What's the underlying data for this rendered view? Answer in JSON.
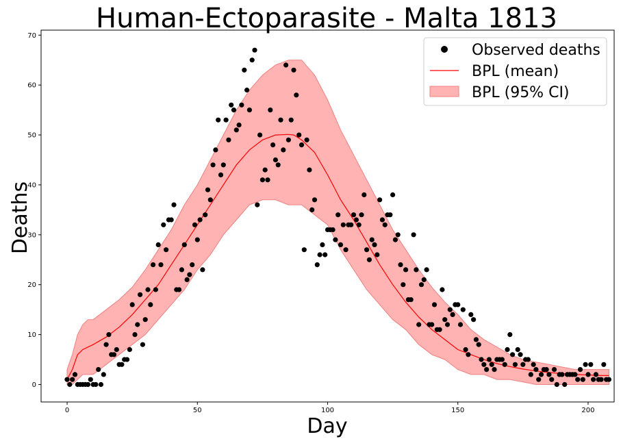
{
  "chart_data": {
    "type": "scatter",
    "title": "Human-Ectoparasite - Malta 1813",
    "xlabel": "Day",
    "ylabel": "Deaths",
    "xlim": [
      -10,
      210
    ],
    "ylim": [
      -3.5,
      71
    ],
    "xticks": [
      0,
      50,
      100,
      150,
      200
    ],
    "yticks": [
      0,
      10,
      20,
      30,
      40,
      50,
      60,
      70
    ],
    "grid": false,
    "legend": {
      "position": "top-right",
      "entries": [
        "Observed deaths",
        "BPL (mean)",
        "BPL (95% CI)"
      ]
    },
    "colors": {
      "observed": "#000000",
      "mean": "#ff0000",
      "ci_fill": "#ffb3b3",
      "ci_edge": "#f08080"
    },
    "observed": {
      "name": "Observed deaths",
      "x": [
        0,
        1,
        2,
        3,
        4,
        5,
        6,
        7,
        8,
        9,
        10,
        11,
        12,
        13,
        14,
        15,
        16,
        17,
        18,
        19,
        20,
        21,
        22,
        23,
        24,
        25,
        26,
        27,
        28,
        29,
        30,
        31,
        32,
        33,
        34,
        35,
        36,
        37,
        38,
        39,
        40,
        41,
        42,
        43,
        44,
        45,
        46,
        47,
        48,
        49,
        50,
        51,
        52,
        53,
        54,
        55,
        56,
        57,
        58,
        59,
        60,
        61,
        62,
        63,
        64,
        65,
        66,
        67,
        68,
        69,
        70,
        71,
        72,
        73,
        74,
        75,
        76,
        77,
        78,
        79,
        80,
        81,
        82,
        83,
        84,
        85,
        86,
        87,
        88,
        89,
        90,
        91,
        92,
        93,
        94,
        95,
        96,
        97,
        98,
        99,
        100,
        101,
        102,
        103,
        104,
        105,
        106,
        107,
        108,
        109,
        110,
        111,
        112,
        113,
        114,
        115,
        116,
        117,
        118,
        119,
        120,
        121,
        122,
        123,
        124,
        125,
        126,
        127,
        128,
        129,
        130,
        131,
        132,
        133,
        134,
        135,
        136,
        137,
        138,
        139,
        140,
        141,
        142,
        143,
        144,
        145,
        146,
        147,
        148,
        149,
        150,
        151,
        152,
        153,
        154,
        155,
        156,
        157,
        158,
        159,
        160,
        161,
        162,
        163,
        164,
        165,
        166,
        167,
        168,
        169,
        170,
        171,
        172,
        173,
        174,
        175,
        176,
        177,
        178,
        179,
        180,
        181,
        182,
        183,
        184,
        185,
        186,
        187,
        188,
        189,
        190,
        191,
        192,
        193,
        194,
        195,
        196,
        197,
        198,
        199,
        200,
        201,
        202,
        203,
        204,
        205,
        206,
        207,
        208
      ],
      "y": [
        1,
        0,
        1,
        2,
        0,
        0,
        0,
        0,
        0,
        1,
        0,
        0,
        3,
        0,
        2,
        8,
        10,
        6,
        6,
        7,
        4,
        4,
        5,
        5,
        7,
        16,
        10,
        12,
        18,
        8,
        13,
        19,
        16,
        24,
        19,
        28,
        24,
        32,
        27,
        33,
        33,
        36,
        19,
        19,
        23,
        28,
        21,
        22,
        24,
        32,
        29,
        33,
        23,
        34,
        39,
        37,
        44,
        47,
        53,
        42,
        44,
        53,
        49,
        56,
        55,
        51,
        52,
        56,
        63,
        59,
        55,
        65,
        67,
        36,
        50,
        41,
        43,
        41,
        55,
        48,
        45,
        44,
        53,
        47,
        64,
        49,
        53,
        63,
        58,
        50,
        48,
        27,
        49,
        43,
        35,
        37,
        24,
        26,
        28,
        26,
        31,
        31,
        31,
        29,
        34,
        28,
        32,
        27,
        32,
        32,
        34,
        33,
        32,
        34,
        38,
        27,
        25,
        29,
        28,
        26,
        37,
        33,
        32,
        34,
        34,
        38,
        29,
        30,
        24,
        20,
        23,
        17,
        17,
        30,
        23,
        12,
        20,
        21,
        23,
        12,
        12,
        16,
        11,
        11,
        19,
        13,
        12,
        15,
        14,
        16,
        16,
        12,
        15,
        7,
        6,
        14,
        13,
        9,
        8,
        5,
        4,
        3,
        5,
        4,
        3,
        5,
        5,
        5,
        4,
        7,
        10,
        6,
        4,
        7,
        6,
        4,
        5,
        5,
        2,
        4,
        3,
        1,
        2,
        3,
        3,
        2,
        1,
        3,
        0,
        2,
        2,
        0,
        2,
        2,
        2,
        2,
        1,
        3,
        1,
        4,
        2,
        4,
        1,
        2,
        1,
        1,
        4,
        1,
        1
      ],
      "_note_y": ""
    },
    "mean": {
      "name": "BPL (mean)",
      "x": [
        0,
        2,
        4,
        6,
        8,
        10,
        15,
        20,
        25,
        30,
        35,
        40,
        45,
        50,
        55,
        60,
        65,
        70,
        75,
        80,
        85,
        87,
        90,
        95,
        100,
        105,
        110,
        115,
        120,
        125,
        130,
        135,
        140,
        145,
        150,
        155,
        160,
        165,
        170,
        175,
        180,
        185,
        190,
        195,
        200,
        205,
        208
      ],
      "y": [
        1,
        3,
        6,
        7,
        7.5,
        8,
        9.5,
        11.5,
        14,
        17,
        20,
        24,
        28,
        32,
        36,
        40,
        44,
        47,
        49,
        50,
        50.1,
        50,
        49,
        46.5,
        42,
        37,
        33,
        28.5,
        24,
        20,
        16.5,
        13.5,
        11,
        9,
        7,
        6,
        5,
        4.2,
        3.6,
        3.1,
        2.7,
        2.4,
        2.2,
        2,
        1.9,
        1.8,
        1.8
      ]
    },
    "ci": {
      "name": "BPL (95% CI)",
      "x": [
        0,
        2,
        4,
        6,
        8,
        10,
        15,
        20,
        25,
        30,
        35,
        40,
        45,
        50,
        55,
        60,
        65,
        70,
        75,
        80,
        85,
        90,
        95,
        100,
        105,
        110,
        115,
        120,
        125,
        130,
        135,
        140,
        145,
        150,
        155,
        160,
        165,
        170,
        175,
        180,
        185,
        190,
        195,
        200,
        205,
        208
      ],
      "upper": [
        3,
        6,
        10,
        12,
        13,
        13,
        15,
        17,
        19.5,
        23,
        27,
        31,
        36,
        40,
        45,
        50,
        55,
        59,
        62,
        64,
        65,
        65,
        62,
        57,
        51,
        46,
        41,
        36,
        31,
        27,
        23,
        19.5,
        16.5,
        14,
        11,
        9,
        7.5,
        6,
        5,
        4.5,
        4,
        3.5,
        3,
        3,
        3,
        3
      ],
      "lower": [
        0,
        0,
        1,
        2,
        2,
        2,
        4,
        6,
        8,
        10,
        13,
        16,
        19,
        23,
        26,
        30,
        33,
        36,
        37,
        37,
        36,
        36,
        34,
        32,
        27,
        23,
        19,
        16,
        13,
        11,
        8,
        6,
        5,
        3,
        2,
        2,
        1,
        1,
        0.5,
        0,
        0,
        0,
        0,
        0,
        0,
        0
      ]
    }
  }
}
